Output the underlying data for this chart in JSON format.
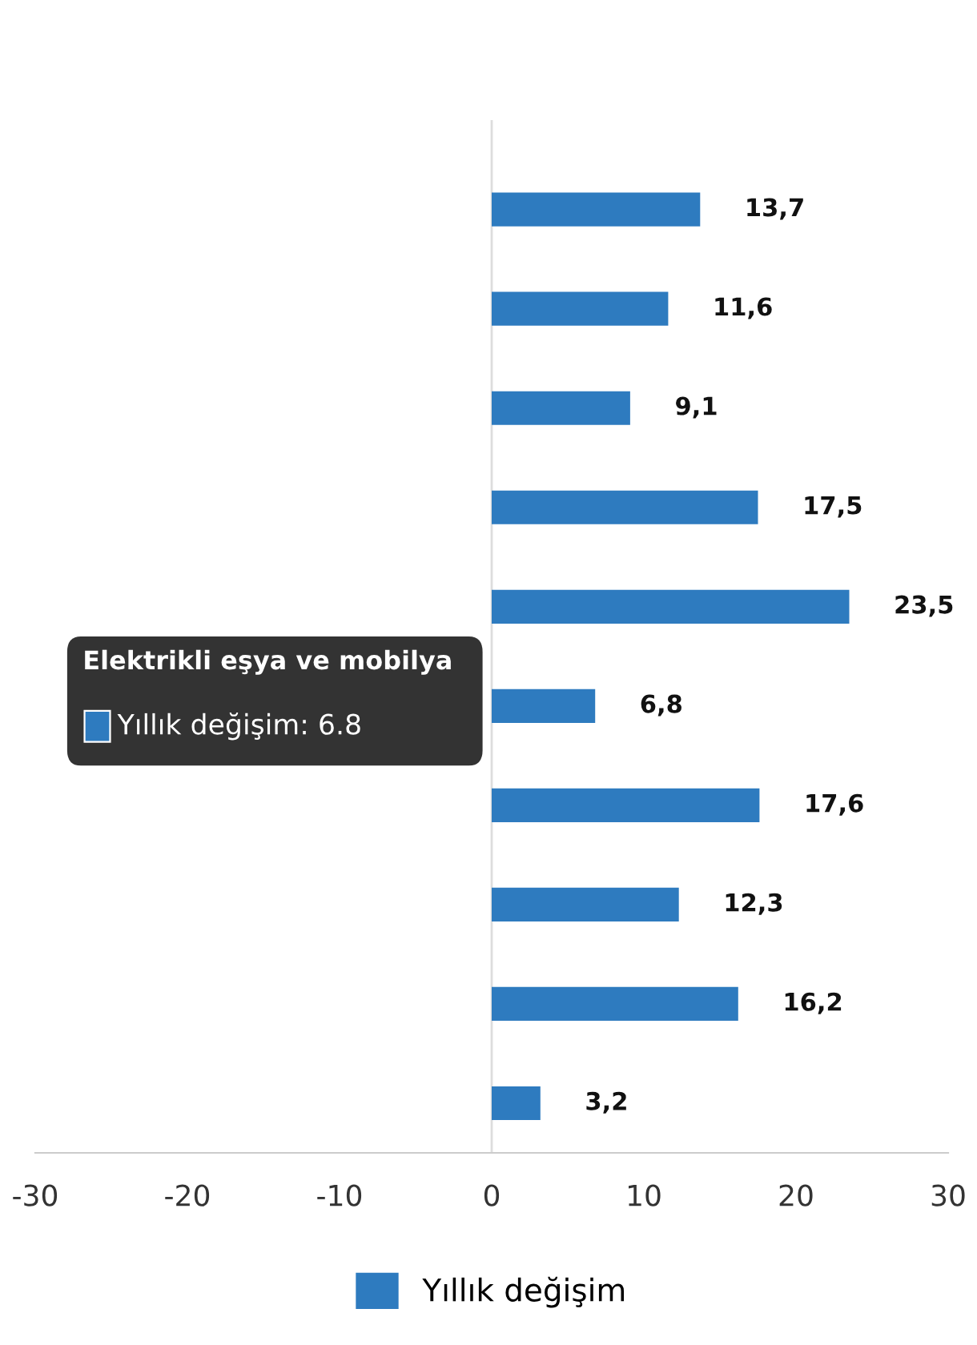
{
  "chart_data": {
    "type": "bar",
    "orientation": "horizontal",
    "categories": [
      null,
      null,
      null,
      null,
      null,
      null,
      null,
      null,
      null,
      null
    ],
    "series": [
      {
        "name": "Yıllık değişim",
        "color": "#2e7bbf",
        "values": [
          13.7,
          11.6,
          9.1,
          17.5,
          23.5,
          6.8,
          17.6,
          12.3,
          16.2,
          3.2
        ],
        "value_labels": [
          "13,7",
          "11,6",
          "9,1",
          "17,5",
          "23,5",
          "6,8",
          "17,6",
          "12,3",
          "16,2",
          "3,2"
        ]
      }
    ],
    "xlim": [
      -30,
      30
    ],
    "xticks": [
      -30,
      -20,
      -10,
      0,
      10,
      20,
      30
    ],
    "grid": false,
    "ref_lines": [
      {
        "axis": "x",
        "value": 0,
        "color": "#dddddd"
      }
    ],
    "legend": "bottom",
    "tick_labels": "x",
    "annotations": [
      "Elektrikli eşya ve mobilya",
      "Yıllık değişim: 6.8"
    ]
  }
}
